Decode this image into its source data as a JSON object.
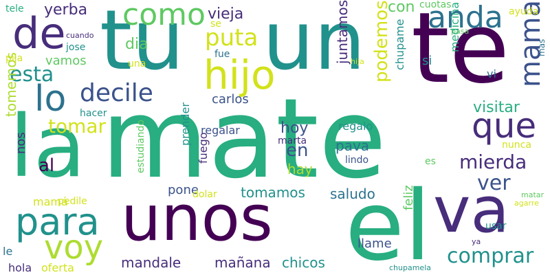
{
  "palette": {
    "background": "#ffffff",
    "dark_purple": "#440154",
    "indigo": "#472d7b",
    "blue": "#3b528b",
    "steel_blue": "#2c728e",
    "teal": "#21918c",
    "green": "#28ae80",
    "light_green": "#5ec962",
    "lime": "#addc30",
    "yellow": "#d2e21b"
  },
  "words": [
    {
      "text": "mate",
      "color": "#28ae80"
    },
    {
      "text": "tu",
      "color": "#21918c"
    },
    {
      "text": "un",
      "color": "#21918c"
    },
    {
      "text": "te",
      "color": "#440154"
    },
    {
      "text": "la",
      "color": "#28ae80"
    },
    {
      "text": "unos",
      "color": "#440154"
    },
    {
      "text": "el",
      "color": "#28ae80"
    },
    {
      "text": "va",
      "color": "#472d7b"
    },
    {
      "text": "de",
      "color": "#472d7b"
    },
    {
      "text": "hijo",
      "color": "#d2e21b"
    },
    {
      "text": "lo",
      "color": "#2c728e"
    },
    {
      "text": "para",
      "color": "#21918c"
    },
    {
      "text": "que",
      "color": "#472d7b"
    },
    {
      "text": "voy",
      "color": "#addc30"
    },
    {
      "text": "decile",
      "color": "#3b528b"
    },
    {
      "text": "como",
      "color": "#5ec962"
    },
    {
      "text": "anda",
      "color": "#2c728e"
    },
    {
      "text": "mama",
      "color": "#3b528b"
    },
    {
      "text": "puta",
      "color": "#d2e21b"
    },
    {
      "text": "esta",
      "color": "#21918c"
    },
    {
      "text": "tomar",
      "color": "#d2e21b"
    },
    {
      "text": "mierda",
      "color": "#472d7b"
    },
    {
      "text": "ver",
      "color": "#3b528b"
    },
    {
      "text": "comprar",
      "color": "#21918c"
    },
    {
      "text": "yerba",
      "color": "#472d7b"
    },
    {
      "text": "vieja",
      "color": "#472d7b"
    },
    {
      "text": "con",
      "color": "#5ec962"
    },
    {
      "text": "cuotas",
      "color": "#5ec962"
    },
    {
      "text": "podemos",
      "color": "#d2e21b"
    },
    {
      "text": "juntamos",
      "color": "#472d7b"
    },
    {
      "text": "visitar",
      "color": "#28ae80"
    },
    {
      "text": "tomemos",
      "color": "#addc30"
    },
    {
      "text": "carlos",
      "color": "#3b528b"
    },
    {
      "text": "hoy",
      "color": "#3b528b"
    },
    {
      "text": "regalar",
      "color": "#3b528b"
    },
    {
      "text": "regalo",
      "color": "#21918c"
    },
    {
      "text": "pava",
      "color": "#2c728e"
    },
    {
      "text": "en",
      "color": "#3b528b"
    },
    {
      "text": "hay",
      "color": "#addc30"
    },
    {
      "text": "al",
      "color": "#440154"
    },
    {
      "text": "nos",
      "color": "#472d7b"
    },
    {
      "text": "dia",
      "color": "#5ec962"
    },
    {
      "text": "vamos",
      "color": "#5ec962"
    },
    {
      "text": "se",
      "color": "#d2e21b"
    },
    {
      "text": "fue",
      "color": "#2c728e"
    },
    {
      "text": "tele",
      "color": "#28ae80"
    },
    {
      "text": "cuando",
      "color": "#472d7b"
    },
    {
      "text": "jose",
      "color": "#21918c"
    },
    {
      "text": "pija",
      "color": "#d2e21b"
    },
    {
      "text": "una",
      "color": "#d2e21b"
    },
    {
      "text": "hacer",
      "color": "#21918c"
    },
    {
      "text": "ayuda",
      "color": "#d2e21b"
    },
    {
      "text": "pasa",
      "color": "#5ec962"
    },
    {
      "text": "si",
      "color": "#21918c"
    },
    {
      "text": "mas",
      "color": "#2c728e"
    },
    {
      "text": "hija",
      "color": "#d2e21b"
    },
    {
      "text": "chupame",
      "color": "#21918c"
    },
    {
      "text": "medicina",
      "color": "#28ae80"
    },
    {
      "text": "vi",
      "color": "#2c728e"
    },
    {
      "text": "nunca",
      "color": "#d2e21b"
    },
    {
      "text": "marta",
      "color": "#472d7b"
    },
    {
      "text": "lindo",
      "color": "#3b528b"
    },
    {
      "text": "es",
      "color": "#5ec962"
    },
    {
      "text": "fuego",
      "color": "#472d7b"
    },
    {
      "text": "prender",
      "color": "#21918c"
    },
    {
      "text": "estudiando",
      "color": "#5ec962"
    },
    {
      "text": "pone",
      "color": "#3b528b"
    },
    {
      "text": "tomamos",
      "color": "#21918c"
    },
    {
      "text": "saludo",
      "color": "#2c728e"
    },
    {
      "text": "dolar",
      "color": "#d2e21b"
    },
    {
      "text": "matar",
      "color": "#5ec962"
    },
    {
      "text": "agarre",
      "color": "#d2e21b"
    },
    {
      "text": "usar",
      "color": "#21918c"
    },
    {
      "text": "feliz",
      "color": "#5ec962"
    },
    {
      "text": "mandale",
      "color": "#472d7b"
    },
    {
      "text": "mañana",
      "color": "#472d7b"
    },
    {
      "text": "chicos",
      "color": "#21918c"
    },
    {
      "text": "llame",
      "color": "#3b528b"
    },
    {
      "text": "mamá",
      "color": "#d2e21b"
    },
    {
      "text": "pedile",
      "color": "#d2e21b"
    },
    {
      "text": "le",
      "color": "#2c728e"
    },
    {
      "text": "hola",
      "color": "#472d7b"
    },
    {
      "text": "oferta",
      "color": "#d2e21b"
    },
    {
      "text": "ya",
      "color": "#472d7b"
    },
    {
      "text": "chupamela",
      "color": "#21918c"
    }
  ]
}
